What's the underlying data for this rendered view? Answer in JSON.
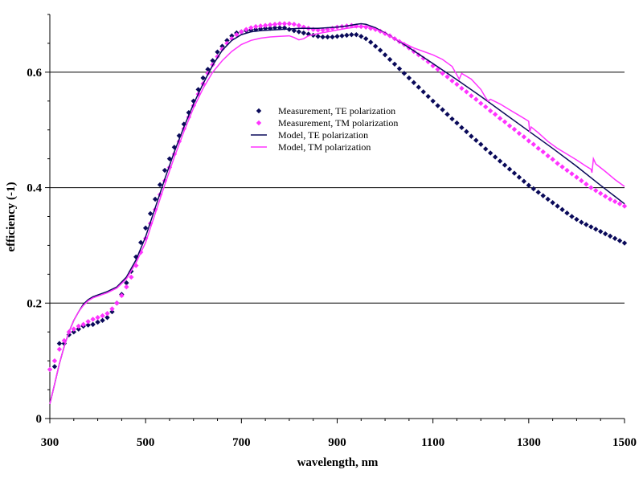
{
  "colors": {
    "te": "#0a0a5a",
    "tm": "#ff33ff",
    "grid": "#000000",
    "background": "#ffffff"
  },
  "chart_data": {
    "type": "scatter",
    "title": "",
    "xlabel": "wavelength, nm",
    "ylabel": "efficiency (-1)",
    "xlim": [
      300,
      1500
    ],
    "ylim": [
      0,
      0.7
    ],
    "x_ticks": [
      300,
      500,
      700,
      900,
      1100,
      1300,
      1500
    ],
    "x_tick_labels": [
      "300",
      "500",
      "700",
      "900",
      "1100",
      "1300",
      "1500"
    ],
    "y_ticks": [
      0,
      0.2,
      0.4,
      0.6
    ],
    "y_tick_labels": [
      "0",
      "0.2",
      "0.4",
      "0.6"
    ],
    "grid": "horizontal major gridlines",
    "legend_position": "center",
    "series": [
      {
        "name": "Measurement, TE polarization",
        "kind": "markers",
        "marker": "diamond",
        "color": "#0a0a5a",
        "x": [
          310,
          320,
          330,
          340,
          350,
          360,
          370,
          380,
          390,
          400,
          410,
          420,
          430,
          440,
          450,
          460,
          470,
          480,
          490,
          500,
          510,
          520,
          530,
          540,
          550,
          560,
          570,
          580,
          590,
          600,
          610,
          620,
          630,
          640,
          650,
          660,
          670,
          680,
          690,
          700,
          710,
          720,
          730,
          740,
          750,
          760,
          770,
          780,
          790,
          800,
          810,
          820,
          830,
          840,
          850,
          860,
          870,
          880,
          890,
          900,
          910,
          920,
          930,
          940,
          950,
          960,
          970,
          980,
          990,
          1000,
          1010,
          1020,
          1030,
          1040,
          1050,
          1060,
          1070,
          1080,
          1090,
          1100,
          1110,
          1120,
          1130,
          1140,
          1150,
          1160,
          1170,
          1180,
          1190,
          1200,
          1210,
          1220,
          1230,
          1240,
          1250,
          1260,
          1270,
          1280,
          1290,
          1300,
          1310,
          1320,
          1330,
          1340,
          1350,
          1360,
          1370,
          1380,
          1390,
          1400,
          1410,
          1420,
          1430,
          1440,
          1450,
          1460,
          1470,
          1480,
          1490,
          1500
        ],
        "y": [
          0.09,
          0.13,
          0.13,
          0.145,
          0.15,
          0.155,
          0.16,
          0.162,
          0.163,
          0.167,
          0.17,
          0.175,
          0.185,
          0.2,
          0.215,
          0.235,
          0.255,
          0.28,
          0.305,
          0.33,
          0.355,
          0.38,
          0.405,
          0.43,
          0.45,
          0.47,
          0.49,
          0.51,
          0.53,
          0.55,
          0.57,
          0.59,
          0.605,
          0.62,
          0.635,
          0.645,
          0.655,
          0.663,
          0.668,
          0.67,
          0.672,
          0.673,
          0.674,
          0.675,
          0.676,
          0.676,
          0.677,
          0.677,
          0.677,
          0.674,
          0.672,
          0.67,
          0.668,
          0.666,
          0.664,
          0.662,
          0.661,
          0.661,
          0.661,
          0.662,
          0.663,
          0.664,
          0.665,
          0.665,
          0.662,
          0.658,
          0.652,
          0.645,
          0.638,
          0.63,
          0.622,
          0.614,
          0.606,
          0.598,
          0.59,
          0.582,
          0.574,
          0.566,
          0.558,
          0.55,
          0.542,
          0.535,
          0.527,
          0.519,
          0.512,
          0.504,
          0.497,
          0.489,
          0.482,
          0.475,
          0.467,
          0.46,
          0.453,
          0.446,
          0.439,
          0.432,
          0.425,
          0.418,
          0.411,
          0.404,
          0.398,
          0.392,
          0.386,
          0.38,
          0.374,
          0.368,
          0.362,
          0.356,
          0.35,
          0.345,
          0.34,
          0.336,
          0.332,
          0.328,
          0.324,
          0.32,
          0.316,
          0.312,
          0.308,
          0.304
        ]
      },
      {
        "name": "Measurement, TM polarization",
        "kind": "markers",
        "marker": "diamond",
        "color": "#ff33ff",
        "x": [
          300,
          310,
          320,
          330,
          340,
          350,
          360,
          370,
          380,
          390,
          400,
          410,
          420,
          430,
          440,
          450,
          460,
          470,
          480,
          490,
          500,
          510,
          520,
          530,
          540,
          550,
          560,
          570,
          580,
          590,
          600,
          610,
          620,
          630,
          640,
          650,
          660,
          670,
          680,
          690,
          700,
          710,
          720,
          730,
          740,
          750,
          760,
          770,
          780,
          790,
          800,
          810,
          820,
          830,
          840,
          850,
          860,
          870,
          880,
          890,
          900,
          910,
          920,
          930,
          940,
          950,
          960,
          970,
          980,
          990,
          1000,
          1010,
          1020,
          1030,
          1040,
          1050,
          1060,
          1070,
          1080,
          1090,
          1100,
          1110,
          1120,
          1130,
          1140,
          1150,
          1160,
          1170,
          1180,
          1190,
          1200,
          1210,
          1220,
          1230,
          1240,
          1250,
          1260,
          1270,
          1280,
          1290,
          1300,
          1310,
          1320,
          1330,
          1340,
          1350,
          1360,
          1370,
          1380,
          1390,
          1400,
          1410,
          1420,
          1430,
          1440,
          1450,
          1460,
          1470,
          1480,
          1490,
          1500
        ],
        "y": [
          0.085,
          0.1,
          0.12,
          0.135,
          0.15,
          0.155,
          0.16,
          0.163,
          0.168,
          0.172,
          0.175,
          0.178,
          0.182,
          0.19,
          0.2,
          0.213,
          0.228,
          0.245,
          0.265,
          0.288,
          0.312,
          0.338,
          0.362,
          0.388,
          0.412,
          0.435,
          0.458,
          0.48,
          0.502,
          0.522,
          0.542,
          0.562,
          0.58,
          0.598,
          0.613,
          0.627,
          0.64,
          0.65,
          0.658,
          0.665,
          0.67,
          0.674,
          0.677,
          0.679,
          0.68,
          0.681,
          0.682,
          0.683,
          0.684,
          0.684,
          0.684,
          0.683,
          0.681,
          0.678,
          0.676,
          0.674,
          0.673,
          0.673,
          0.674,
          0.676,
          0.678,
          0.679,
          0.68,
          0.681,
          0.68,
          0.679,
          0.678,
          0.676,
          0.674,
          0.671,
          0.667,
          0.663,
          0.658,
          0.653,
          0.648,
          0.642,
          0.636,
          0.63,
          0.624,
          0.618,
          0.611,
          0.605,
          0.598,
          0.592,
          0.585,
          0.579,
          0.572,
          0.566,
          0.559,
          0.553,
          0.546,
          0.54,
          0.533,
          0.527,
          0.52,
          0.514,
          0.507,
          0.501,
          0.494,
          0.488,
          0.481,
          0.475,
          0.468,
          0.462,
          0.455,
          0.449,
          0.442,
          0.436,
          0.43,
          0.424,
          0.418,
          0.412,
          0.406,
          0.4,
          0.395,
          0.39,
          0.385,
          0.38,
          0.376,
          0.372,
          0.368
        ]
      },
      {
        "name": "Model, TE polarization",
        "kind": "line",
        "color": "#0a0a5a",
        "x": [
          300,
          310,
          320,
          330,
          340,
          350,
          360,
          370,
          380,
          390,
          400,
          420,
          440,
          460,
          480,
          500,
          520,
          540,
          560,
          580,
          600,
          620,
          640,
          660,
          680,
          700,
          720,
          740,
          760,
          780,
          800,
          820,
          840,
          860,
          880,
          900,
          920,
          940,
          950,
          960,
          980,
          1000,
          1020,
          1040,
          1060,
          1080,
          1100,
          1150,
          1200,
          1250,
          1300,
          1350,
          1400,
          1450,
          1500
        ],
        "y": [
          0.025,
          0.06,
          0.095,
          0.125,
          0.15,
          0.17,
          0.185,
          0.198,
          0.206,
          0.211,
          0.214,
          0.22,
          0.228,
          0.245,
          0.275,
          0.315,
          0.365,
          0.415,
          0.462,
          0.505,
          0.545,
          0.58,
          0.612,
          0.638,
          0.655,
          0.665,
          0.67,
          0.672,
          0.673,
          0.674,
          0.675,
          0.676,
          0.676,
          0.676,
          0.677,
          0.678,
          0.68,
          0.683,
          0.684,
          0.683,
          0.677,
          0.668,
          0.658,
          0.648,
          0.637,
          0.626,
          0.615,
          0.587,
          0.558,
          0.528,
          0.498,
          0.468,
          0.437,
          0.404,
          0.372
        ]
      },
      {
        "name": "Model, TM polarization",
        "kind": "line",
        "color": "#ff33ff",
        "x": [
          300,
          310,
          320,
          330,
          340,
          350,
          360,
          370,
          380,
          390,
          400,
          420,
          440,
          460,
          480,
          500,
          520,
          540,
          560,
          580,
          600,
          620,
          640,
          660,
          680,
          700,
          720,
          740,
          760,
          780,
          800,
          810,
          820,
          830,
          840,
          860,
          880,
          900,
          920,
          940,
          960,
          980,
          1000,
          1020,
          1040,
          1060,
          1080,
          1100,
          1120,
          1140,
          1150,
          1155,
          1160,
          1180,
          1200,
          1210,
          1215,
          1220,
          1240,
          1260,
          1280,
          1300,
          1302,
          1305,
          1320,
          1340,
          1360,
          1380,
          1400,
          1420,
          1430,
          1432,
          1435,
          1440,
          1460,
          1480,
          1500
        ],
        "y": [
          0.025,
          0.06,
          0.095,
          0.125,
          0.15,
          0.17,
          0.185,
          0.196,
          0.204,
          0.209,
          0.212,
          0.218,
          0.226,
          0.242,
          0.27,
          0.305,
          0.355,
          0.405,
          0.453,
          0.497,
          0.538,
          0.572,
          0.6,
          0.62,
          0.636,
          0.648,
          0.655,
          0.659,
          0.661,
          0.662,
          0.663,
          0.66,
          0.656,
          0.658,
          0.663,
          0.667,
          0.67,
          0.673,
          0.676,
          0.678,
          0.68,
          0.675,
          0.667,
          0.658,
          0.65,
          0.642,
          0.636,
          0.63,
          0.622,
          0.61,
          0.595,
          0.588,
          0.598,
          0.588,
          0.57,
          0.556,
          0.55,
          0.553,
          0.545,
          0.535,
          0.525,
          0.515,
          0.496,
          0.505,
          0.495,
          0.48,
          0.468,
          0.458,
          0.448,
          0.437,
          0.432,
          0.426,
          0.45,
          0.441,
          0.428,
          0.414,
          0.402
        ]
      }
    ]
  }
}
